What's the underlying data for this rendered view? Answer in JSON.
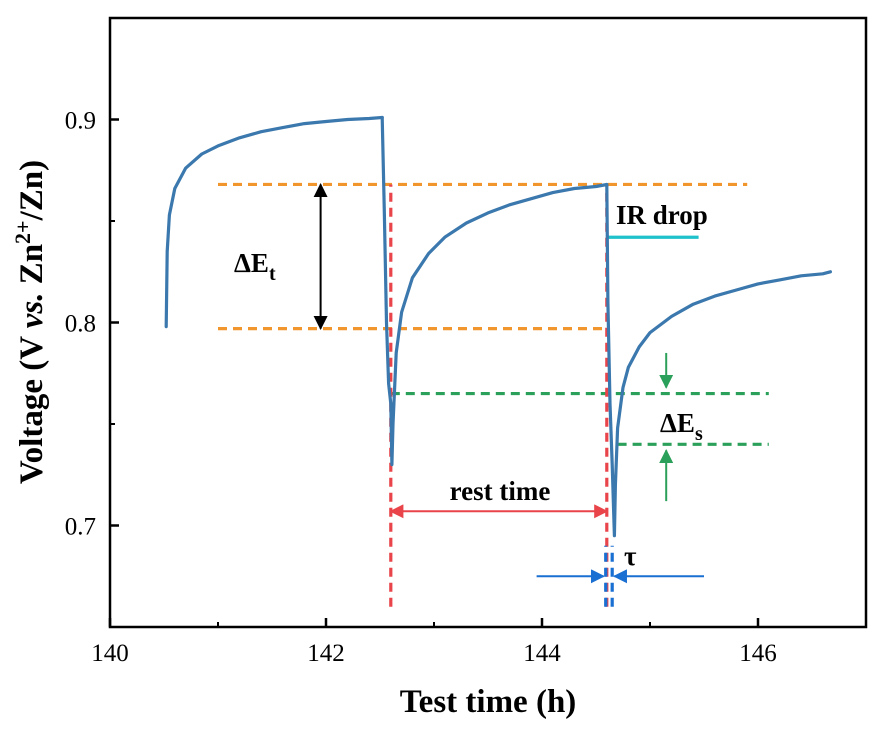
{
  "chart_data": {
    "type": "line",
    "xlabel": "Test time (h)",
    "ylabel": {
      "part1": "Voltage (V ",
      "part2": "vs.",
      "part3": " Zn",
      "sup": "2+",
      "part4": "/Zn)"
    },
    "xlim": [
      140,
      147
    ],
    "ylim": [
      0.65,
      0.95
    ],
    "x_ticks": [
      140,
      142,
      144,
      146
    ],
    "x_tick_labels": [
      "140",
      "142",
      "144",
      "146"
    ],
    "y_ticks": [
      0.7,
      0.8,
      0.9
    ],
    "y_tick_labels": [
      "0.7",
      "0.8",
      "0.9"
    ],
    "grid": false,
    "series_color": "#3b78ad",
    "series": [
      {
        "x": [
          140.52,
          140.53,
          140.55,
          140.6,
          140.7,
          140.85,
          141.0,
          141.2,
          141.4,
          141.6,
          141.8,
          142.0,
          142.2,
          142.4,
          142.52
        ],
        "y": [
          0.798,
          0.835,
          0.853,
          0.866,
          0.876,
          0.883,
          0.887,
          0.891,
          0.894,
          0.896,
          0.898,
          0.899,
          0.9,
          0.9005,
          0.901
        ]
      },
      {
        "x": [
          142.52,
          142.54,
          142.56,
          142.58,
          142.6,
          142.61,
          142.62,
          142.65,
          142.7,
          142.8,
          142.95,
          143.1,
          143.3,
          143.5,
          143.7,
          143.9,
          144.1,
          144.3,
          144.5,
          144.6
        ],
        "y": [
          0.901,
          0.855,
          0.8,
          0.77,
          0.76,
          0.73,
          0.75,
          0.785,
          0.805,
          0.822,
          0.834,
          0.842,
          0.849,
          0.854,
          0.858,
          0.861,
          0.864,
          0.866,
          0.867,
          0.868
        ]
      },
      {
        "x": [
          144.6,
          144.61,
          144.63,
          144.65,
          144.67,
          144.68,
          144.7,
          144.75,
          144.8,
          144.9,
          145.0,
          145.2,
          145.4,
          145.6,
          145.8,
          146.0,
          146.2,
          146.4,
          146.6,
          146.67
        ],
        "y": [
          0.868,
          0.81,
          0.76,
          0.73,
          0.695,
          0.72,
          0.748,
          0.768,
          0.778,
          0.788,
          0.795,
          0.803,
          0.809,
          0.813,
          0.816,
          0.819,
          0.821,
          0.823,
          0.824,
          0.825
        ]
      }
    ],
    "reference_lines": [
      {
        "kind": "h",
        "y": 0.868,
        "x": [
          141.0,
          145.9
        ],
        "color": "#f0962d"
      },
      {
        "kind": "h",
        "y": 0.797,
        "x": [
          141.0,
          144.6
        ],
        "color": "#f0962d"
      },
      {
        "kind": "h",
        "y": 0.765,
        "x": [
          142.6,
          146.1
        ],
        "color": "#2ba05a"
      },
      {
        "kind": "h",
        "y": 0.74,
        "x": [
          144.7,
          146.1
        ],
        "color": "#2ba05a"
      },
      {
        "kind": "v",
        "x": 142.6,
        "y": [
          0.66,
          0.868
        ],
        "color": "#e8444a"
      },
      {
        "kind": "v",
        "x": 144.6,
        "y": [
          0.66,
          0.868
        ],
        "color": "#e8444a"
      },
      {
        "kind": "v",
        "x": 144.59,
        "y": [
          0.66,
          0.69
        ],
        "color": "#1a6fd2"
      },
      {
        "kind": "v",
        "x": 144.65,
        "y": [
          0.66,
          0.69
        ],
        "color": "#1a6fd2"
      }
    ],
    "ir_drop_line": {
      "y": 0.842,
      "x": [
        144.6,
        145.45
      ],
      "color": "#1fc2cb"
    },
    "annotations": {
      "delta_et": {
        "base": "ΔE",
        "sub": "t"
      },
      "delta_es": {
        "base": "ΔE",
        "sub": "s"
      },
      "ir_drop": "IR drop",
      "rest_time": "rest time",
      "tau": "τ"
    },
    "arrows": [
      {
        "name": "delta-et-arrow",
        "from": [
          141.95,
          0.868
        ],
        "to": [
          141.95,
          0.797
        ],
        "both": true,
        "color": "#000000"
      },
      {
        "name": "rest-time-arrow",
        "from": [
          142.6,
          0.707
        ],
        "to": [
          144.6,
          0.707
        ],
        "both": true,
        "color": "#e8444a"
      },
      {
        "name": "delta-es-arrow-top",
        "from": [
          145.15,
          0.785
        ],
        "to": [
          145.15,
          0.768
        ],
        "both": false,
        "color": "#2ba05a"
      },
      {
        "name": "delta-es-arrow-bottom",
        "from": [
          145.15,
          0.712
        ],
        "to": [
          145.15,
          0.737
        ],
        "both": false,
        "color": "#2ba05a"
      },
      {
        "name": "tau-arrow-left",
        "from": [
          143.95,
          0.675
        ],
        "to": [
          144.57,
          0.675
        ],
        "both": false,
        "color": "#1a6fd2"
      },
      {
        "name": "tau-arrow-right",
        "from": [
          145.5,
          0.675
        ],
        "to": [
          144.67,
          0.675
        ],
        "both": false,
        "color": "#1a6fd2"
      }
    ],
    "orange": "#f0962d",
    "green": "#2ba05a",
    "red": "#e8444a",
    "blue": "#1a6fd2",
    "cyan": "#1fc2cb"
  }
}
